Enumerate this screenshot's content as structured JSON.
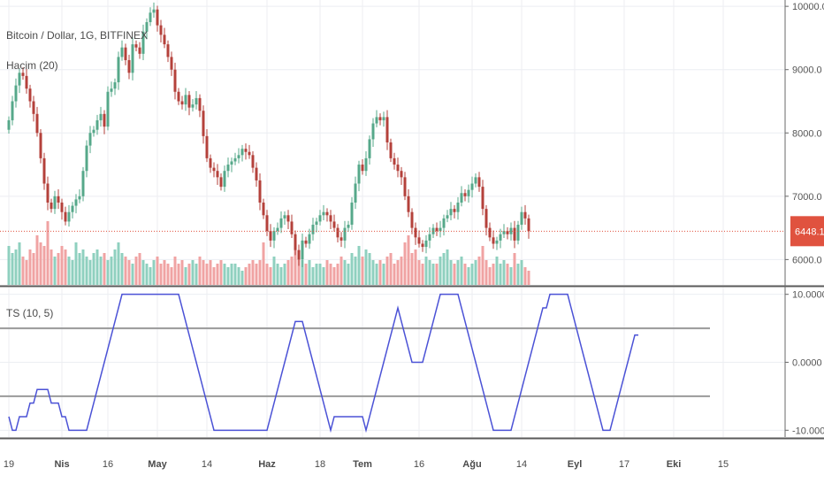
{
  "chart_data": [
    {
      "type": "candlestick",
      "title": "Bitcoin / Dollar, 1G, BITFINEX",
      "volume_label": "Hacim (20)",
      "y_ticks": [
        "10000.0",
        "9000.0",
        "8000.0",
        "7000.0",
        "6000.0"
      ],
      "y_tick_values": [
        10000,
        9000,
        8000,
        7000,
        6000
      ],
      "ylim": [
        5600,
        10100
      ],
      "last_price_label": "6448.1",
      "last_price": 6448.1,
      "grid": true,
      "closes": [
        8200,
        8500,
        8750,
        8950,
        8900,
        8700,
        8500,
        8300,
        8000,
        7600,
        7200,
        6900,
        6800,
        7000,
        6900,
        6750,
        6600,
        6750,
        6850,
        6950,
        7000,
        7400,
        7800,
        8000,
        8050,
        8200,
        8300,
        8100,
        8650,
        8700,
        8800,
        9200,
        9350,
        9150,
        8950,
        9400,
        9350,
        9250,
        9600,
        9750,
        9900,
        9950,
        9700,
        9550,
        9400,
        9200,
        9000,
        8650,
        8500,
        8450,
        8600,
        8400,
        8450,
        8550,
        8350,
        7950,
        7600,
        7450,
        7400,
        7300,
        7150,
        7400,
        7500,
        7550,
        7600,
        7650,
        7750,
        7700,
        7650,
        7450,
        7250,
        6900,
        6700,
        6450,
        6300,
        6450,
        6500,
        6650,
        6700,
        6600,
        6400,
        6150,
        6000,
        6300,
        6250,
        6400,
        6550,
        6600,
        6700,
        6750,
        6700,
        6600,
        6500,
        6350,
        6300,
        6500,
        6550,
        6900,
        7200,
        7500,
        7400,
        7600,
        7900,
        8150,
        8250,
        8200,
        8250,
        7850,
        7600,
        7500,
        7400,
        7300,
        7000,
        6750,
        6500,
        6350,
        6250,
        6200,
        6300,
        6400,
        6500,
        6450,
        6500,
        6650,
        6700,
        6800,
        6750,
        6900,
        7050,
        7000,
        7100,
        7200,
        7300,
        7150,
        6800,
        6500,
        6350,
        6250,
        6300,
        6400,
        6450,
        6400,
        6500,
        6300,
        6550,
        6750,
        6650,
        6448
      ],
      "volumes": [
        0.55,
        0.45,
        0.5,
        0.6,
        0.4,
        0.35,
        0.5,
        0.45,
        0.7,
        0.6,
        0.55,
        0.9,
        0.5,
        0.4,
        0.45,
        0.55,
        0.5,
        0.4,
        0.35,
        0.6,
        0.45,
        0.5,
        0.4,
        0.35,
        0.45,
        0.5,
        0.4,
        0.45,
        0.35,
        0.4,
        0.5,
        0.6,
        0.45,
        0.4,
        0.35,
        0.3,
        0.4,
        0.45,
        0.35,
        0.3,
        0.25,
        0.35,
        0.4,
        0.3,
        0.35,
        0.3,
        0.25,
        0.4,
        0.3,
        0.35,
        0.25,
        0.3,
        0.35,
        0.3,
        0.4,
        0.35,
        0.3,
        0.35,
        0.25,
        0.3,
        0.35,
        0.3,
        0.25,
        0.3,
        0.3,
        0.25,
        0.2,
        0.25,
        0.3,
        0.35,
        0.3,
        0.35,
        0.6,
        0.3,
        0.25,
        0.4,
        0.3,
        0.25,
        0.3,
        0.35,
        0.4,
        0.55,
        0.45,
        0.35,
        0.3,
        0.35,
        0.25,
        0.3,
        0.3,
        0.25,
        0.35,
        0.3,
        0.25,
        0.3,
        0.4,
        0.35,
        0.3,
        0.45,
        0.4,
        0.55,
        0.4,
        0.5,
        0.45,
        0.35,
        0.3,
        0.35,
        0.3,
        0.4,
        0.45,
        0.3,
        0.35,
        0.4,
        0.6,
        0.7,
        0.45,
        0.5,
        0.35,
        0.3,
        0.4,
        0.35,
        0.3,
        0.3,
        0.4,
        0.45,
        0.5,
        0.35,
        0.3,
        0.35,
        0.4,
        0.3,
        0.25,
        0.3,
        0.35,
        0.4,
        0.55,
        0.35,
        0.25,
        0.3,
        0.4,
        0.3,
        0.35,
        0.3,
        0.25,
        0.45,
        0.3,
        0.35,
        0.25,
        0.2
      ],
      "x_labels": [
        "19",
        "Nis",
        "16",
        "May",
        "14",
        "Haz",
        "18",
        "Tem",
        "16",
        "Ağu",
        "14",
        "Eyl",
        "17",
        "Eki",
        "15"
      ],
      "x_label_index": [
        0,
        15,
        28,
        42,
        56,
        73,
        88,
        100,
        116,
        131,
        145,
        160,
        174,
        188,
        202
      ],
      "x_label_bold": [
        false,
        true,
        false,
        true,
        false,
        true,
        false,
        true,
        false,
        true,
        false,
        true,
        false,
        true,
        false
      ],
      "colors": {
        "up": "#56a88a",
        "down": "#b4413b",
        "up_volume": "#8fd0bf",
        "down_volume": "#f0a3a3",
        "price_line": "#e0523f"
      }
    },
    {
      "type": "line",
      "title": "TS (10, 5)",
      "y_ticks": [
        "10.0000",
        "0.0000",
        "-10.0000"
      ],
      "y_tick_values": [
        10,
        0,
        -10
      ],
      "ylim": [
        -11,
        11
      ],
      "levels": [
        5,
        -5
      ],
      "line_color": "#4b52d6",
      "values": [
        -8,
        -10,
        -10,
        -8,
        -8,
        -8,
        -6,
        -6,
        -4,
        -4,
        -4,
        -4,
        -6,
        -6,
        -6,
        -8,
        -8,
        -10,
        -10,
        -10,
        -10,
        -10,
        -10,
        -8,
        -6,
        -4,
        -2,
        0,
        2,
        4,
        6,
        8,
        10,
        10,
        10,
        10,
        10,
        10,
        10,
        10,
        10,
        10,
        10,
        10,
        10,
        10,
        10,
        10,
        10,
        8,
        6,
        4,
        2,
        0,
        -2,
        -4,
        -6,
        -8,
        -10,
        -10,
        -10,
        -10,
        -10,
        -10,
        -10,
        -10,
        -10,
        -10,
        -10,
        -10,
        -10,
        -10,
        -10,
        -10,
        -8,
        -6,
        -4,
        -2,
        0,
        2,
        4,
        6,
        6,
        6,
        4,
        2,
        0,
        -2,
        -4,
        -6,
        -8,
        -10,
        -8,
        -8,
        -8,
        -8,
        -8,
        -8,
        -8,
        -8,
        -8,
        -10,
        -8,
        -6,
        -4,
        -2,
        0,
        2,
        4,
        6,
        8,
        6,
        4,
        2,
        0,
        0,
        0,
        0,
        2,
        4,
        6,
        8,
        10,
        10,
        10,
        10,
        10,
        10,
        8,
        6,
        4,
        2,
        0,
        -2,
        -4,
        -6,
        -8,
        -10,
        -10,
        -10,
        -10,
        -10,
        -10,
        -8,
        -6,
        -4,
        -2,
        0,
        2,
        4,
        6,
        8,
        8,
        10,
        10,
        10,
        10,
        10,
        10,
        8,
        6,
        4,
        2,
        0,
        -2,
        -4,
        -6,
        -8,
        -10,
        -10,
        -10,
        -8,
        -6,
        -4,
        -2,
        0,
        2,
        4,
        4
      ]
    }
  ]
}
